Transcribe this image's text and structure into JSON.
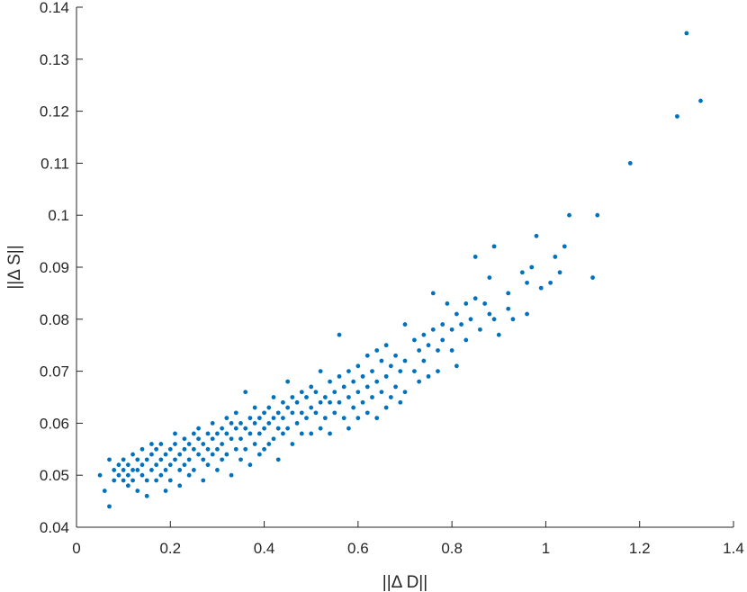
{
  "chart_data": {
    "type": "scatter",
    "title": "",
    "xlabel": "||Δ D||",
    "ylabel": "||Δ S||",
    "xlim": [
      0,
      1.4
    ],
    "ylim": [
      0.04,
      0.14
    ],
    "xticks": [
      0,
      0.2,
      0.4,
      0.6,
      0.8,
      1.0,
      1.2,
      1.4
    ],
    "xtick_labels": [
      "0",
      "0.2",
      "0.4",
      "0.6",
      "0.8",
      "1",
      "1.2",
      "1.4"
    ],
    "yticks": [
      0.04,
      0.05,
      0.06,
      0.07,
      0.08,
      0.09,
      0.1,
      0.11,
      0.12,
      0.13,
      0.14
    ],
    "ytick_labels": [
      "0.04",
      "0.05",
      "0.06",
      "0.07",
      "0.08",
      "0.09",
      "0.1",
      "0.11",
      "0.12",
      "0.13",
      "0.14"
    ],
    "grid": false,
    "marker_color": "#0072BD",
    "series": [
      {
        "points": [
          [
            0.05,
            0.05
          ],
          [
            0.06,
            0.047
          ],
          [
            0.07,
            0.044
          ],
          [
            0.07,
            0.053
          ],
          [
            0.08,
            0.051
          ],
          [
            0.08,
            0.049
          ],
          [
            0.09,
            0.052
          ],
          [
            0.09,
            0.05
          ],
          [
            0.1,
            0.051
          ],
          [
            0.1,
            0.049
          ],
          [
            0.1,
            0.053
          ],
          [
            0.11,
            0.052
          ],
          [
            0.11,
            0.05
          ],
          [
            0.11,
            0.048
          ],
          [
            0.12,
            0.054
          ],
          [
            0.12,
            0.051
          ],
          [
            0.12,
            0.049
          ],
          [
            0.13,
            0.053
          ],
          [
            0.13,
            0.051
          ],
          [
            0.13,
            0.047
          ],
          [
            0.14,
            0.052
          ],
          [
            0.14,
            0.055
          ],
          [
            0.14,
            0.05
          ],
          [
            0.15,
            0.053
          ],
          [
            0.15,
            0.049
          ],
          [
            0.15,
            0.046
          ],
          [
            0.16,
            0.054
          ],
          [
            0.16,
            0.051
          ],
          [
            0.16,
            0.056
          ],
          [
            0.17,
            0.052
          ],
          [
            0.17,
            0.049
          ],
          [
            0.17,
            0.055
          ],
          [
            0.18,
            0.053
          ],
          [
            0.18,
            0.05
          ],
          [
            0.18,
            0.056
          ],
          [
            0.19,
            0.054
          ],
          [
            0.19,
            0.051
          ],
          [
            0.19,
            0.047
          ],
          [
            0.2,
            0.055
          ],
          [
            0.2,
            0.052
          ],
          [
            0.2,
            0.049
          ],
          [
            0.21,
            0.056
          ],
          [
            0.21,
            0.053
          ],
          [
            0.21,
            0.058
          ],
          [
            0.22,
            0.054
          ],
          [
            0.22,
            0.051
          ],
          [
            0.22,
            0.048
          ],
          [
            0.23,
            0.057
          ],
          [
            0.23,
            0.055
          ],
          [
            0.23,
            0.052
          ],
          [
            0.24,
            0.056
          ],
          [
            0.24,
            0.053
          ],
          [
            0.24,
            0.05
          ],
          [
            0.25,
            0.058
          ],
          [
            0.25,
            0.055
          ],
          [
            0.25,
            0.051
          ],
          [
            0.26,
            0.057
          ],
          [
            0.26,
            0.054
          ],
          [
            0.26,
            0.059
          ],
          [
            0.27,
            0.056
          ],
          [
            0.27,
            0.053
          ],
          [
            0.27,
            0.049
          ],
          [
            0.28,
            0.058
          ],
          [
            0.28,
            0.055
          ],
          [
            0.28,
            0.052
          ],
          [
            0.29,
            0.057
          ],
          [
            0.29,
            0.06
          ],
          [
            0.29,
            0.054
          ],
          [
            0.3,
            0.058
          ],
          [
            0.3,
            0.055
          ],
          [
            0.3,
            0.051
          ],
          [
            0.31,
            0.059
          ],
          [
            0.31,
            0.056
          ],
          [
            0.31,
            0.053
          ],
          [
            0.32,
            0.061
          ],
          [
            0.32,
            0.058
          ],
          [
            0.32,
            0.054
          ],
          [
            0.33,
            0.06
          ],
          [
            0.33,
            0.057
          ],
          [
            0.33,
            0.05
          ],
          [
            0.34,
            0.059
          ],
          [
            0.34,
            0.062
          ],
          [
            0.34,
            0.055
          ],
          [
            0.35,
            0.06
          ],
          [
            0.35,
            0.057
          ],
          [
            0.35,
            0.053
          ],
          [
            0.36,
            0.066
          ],
          [
            0.36,
            0.059
          ],
          [
            0.36,
            0.055
          ],
          [
            0.37,
            0.061
          ],
          [
            0.37,
            0.058
          ],
          [
            0.37,
            0.052
          ],
          [
            0.38,
            0.06
          ],
          [
            0.38,
            0.063
          ],
          [
            0.38,
            0.056
          ],
          [
            0.39,
            0.061
          ],
          [
            0.39,
            0.058
          ],
          [
            0.39,
            0.054
          ],
          [
            0.4,
            0.062
          ],
          [
            0.4,
            0.059
          ],
          [
            0.4,
            0.055
          ],
          [
            0.41,
            0.063
          ],
          [
            0.41,
            0.06
          ],
          [
            0.41,
            0.056
          ],
          [
            0.42,
            0.065
          ],
          [
            0.42,
            0.061
          ],
          [
            0.42,
            0.057
          ],
          [
            0.43,
            0.062
          ],
          [
            0.43,
            0.059
          ],
          [
            0.43,
            0.053
          ],
          [
            0.44,
            0.064
          ],
          [
            0.44,
            0.061
          ],
          [
            0.44,
            0.058
          ],
          [
            0.45,
            0.068
          ],
          [
            0.45,
            0.063
          ],
          [
            0.45,
            0.059
          ],
          [
            0.46,
            0.065
          ],
          [
            0.46,
            0.062
          ],
          [
            0.46,
            0.056
          ],
          [
            0.47,
            0.064
          ],
          [
            0.47,
            0.06
          ],
          [
            0.48,
            0.066
          ],
          [
            0.48,
            0.062
          ],
          [
            0.48,
            0.058
          ],
          [
            0.49,
            0.065
          ],
          [
            0.49,
            0.061
          ],
          [
            0.5,
            0.067
          ],
          [
            0.5,
            0.063
          ],
          [
            0.5,
            0.058
          ],
          [
            0.51,
            0.066
          ],
          [
            0.51,
            0.062
          ],
          [
            0.52,
            0.07
          ],
          [
            0.52,
            0.064
          ],
          [
            0.52,
            0.059
          ],
          [
            0.53,
            0.065
          ],
          [
            0.53,
            0.061
          ],
          [
            0.54,
            0.068
          ],
          [
            0.54,
            0.064
          ],
          [
            0.54,
            0.058
          ],
          [
            0.55,
            0.066
          ],
          [
            0.55,
            0.062
          ],
          [
            0.56,
            0.077
          ],
          [
            0.56,
            0.069
          ],
          [
            0.56,
            0.064
          ],
          [
            0.57,
            0.067
          ],
          [
            0.57,
            0.061
          ],
          [
            0.58,
            0.07
          ],
          [
            0.58,
            0.065
          ],
          [
            0.58,
            0.059
          ],
          [
            0.59,
            0.068
          ],
          [
            0.59,
            0.063
          ],
          [
            0.6,
            0.071
          ],
          [
            0.6,
            0.066
          ],
          [
            0.6,
            0.061
          ],
          [
            0.61,
            0.069
          ],
          [
            0.61,
            0.064
          ],
          [
            0.62,
            0.073
          ],
          [
            0.62,
            0.067
          ],
          [
            0.62,
            0.062
          ],
          [
            0.63,
            0.07
          ],
          [
            0.63,
            0.065
          ],
          [
            0.64,
            0.074
          ],
          [
            0.64,
            0.068
          ],
          [
            0.64,
            0.061
          ],
          [
            0.65,
            0.072
          ],
          [
            0.65,
            0.066
          ],
          [
            0.66,
            0.075
          ],
          [
            0.66,
            0.069
          ],
          [
            0.66,
            0.063
          ],
          [
            0.67,
            0.071
          ],
          [
            0.67,
            0.065
          ],
          [
            0.68,
            0.073
          ],
          [
            0.68,
            0.067
          ],
          [
            0.69,
            0.07
          ],
          [
            0.69,
            0.064
          ],
          [
            0.7,
            0.079
          ],
          [
            0.7,
            0.072
          ],
          [
            0.7,
            0.066
          ],
          [
            0.72,
            0.076
          ],
          [
            0.72,
            0.07
          ],
          [
            0.73,
            0.074
          ],
          [
            0.73,
            0.068
          ],
          [
            0.74,
            0.077
          ],
          [
            0.74,
            0.072
          ],
          [
            0.75,
            0.075
          ],
          [
            0.75,
            0.069
          ],
          [
            0.76,
            0.085
          ],
          [
            0.76,
            0.078
          ],
          [
            0.77,
            0.074
          ],
          [
            0.77,
            0.07
          ],
          [
            0.78,
            0.079
          ],
          [
            0.78,
            0.076
          ],
          [
            0.79,
            0.083
          ],
          [
            0.8,
            0.078
          ],
          [
            0.8,
            0.074
          ],
          [
            0.81,
            0.081
          ],
          [
            0.81,
            0.071
          ],
          [
            0.82,
            0.079
          ],
          [
            0.83,
            0.083
          ],
          [
            0.83,
            0.076
          ],
          [
            0.84,
            0.08
          ],
          [
            0.85,
            0.092
          ],
          [
            0.85,
            0.084
          ],
          [
            0.86,
            0.078
          ],
          [
            0.87,
            0.083
          ],
          [
            0.88,
            0.088
          ],
          [
            0.88,
            0.081
          ],
          [
            0.89,
            0.094
          ],
          [
            0.89,
            0.08
          ],
          [
            0.9,
            0.077
          ],
          [
            0.92,
            0.085
          ],
          [
            0.92,
            0.082
          ],
          [
            0.93,
            0.08
          ],
          [
            0.95,
            0.089
          ],
          [
            0.96,
            0.087
          ],
          [
            0.96,
            0.081
          ],
          [
            0.97,
            0.09
          ],
          [
            0.98,
            0.096
          ],
          [
            0.99,
            0.086
          ],
          [
            1.01,
            0.087
          ],
          [
            1.02,
            0.092
          ],
          [
            1.03,
            0.089
          ],
          [
            1.04,
            0.094
          ],
          [
            1.05,
            0.1
          ],
          [
            1.1,
            0.088
          ],
          [
            1.11,
            0.1
          ],
          [
            1.18,
            0.11
          ],
          [
            1.28,
            0.119
          ],
          [
            1.3,
            0.135
          ],
          [
            1.33,
            0.122
          ]
        ]
      }
    ]
  }
}
